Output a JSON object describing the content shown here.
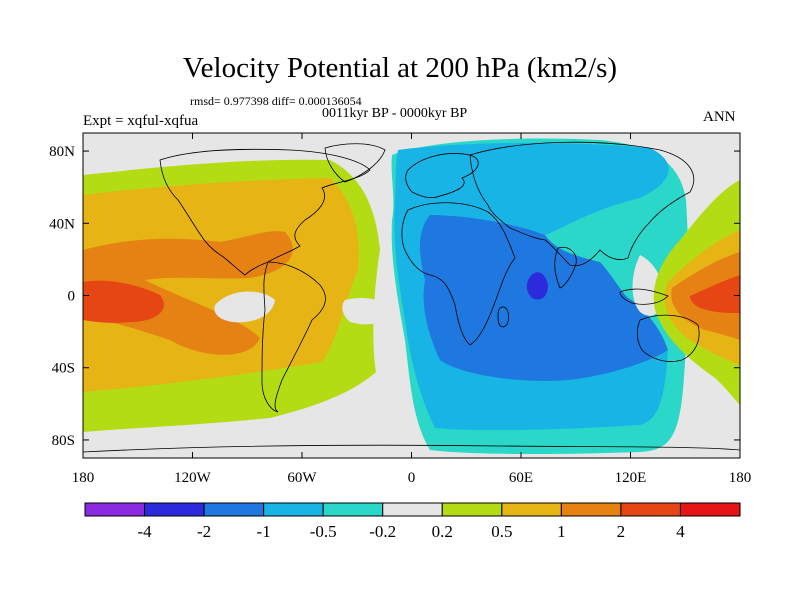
{
  "title": "Velocity Potential at 200 hPa (km2/s)",
  "stats": "rmsd= 0.977398 diff= 0.000136054",
  "period": "0011kyr BP - 0000kyr BP",
  "experiment": "Expt = xqful-xqfua",
  "season": "ANN",
  "map": {
    "projection": "equirectangular",
    "lon_range": [
      -180,
      180
    ],
    "lat_range": [
      -90,
      90
    ],
    "lat_ticks": [
      {
        "lat": 80,
        "label": "80N"
      },
      {
        "lat": 40,
        "label": "40N"
      },
      {
        "lat": 0,
        "label": "0"
      },
      {
        "lat": -40,
        "label": "40S"
      },
      {
        "lat": -80,
        "label": "80S"
      }
    ],
    "lon_ticks": [
      {
        "lon": -180,
        "label": "180"
      },
      {
        "lon": -120,
        "label": "120W"
      },
      {
        "lon": -60,
        "label": "60W"
      },
      {
        "lon": 0,
        "label": "0"
      },
      {
        "lon": 60,
        "label": "60E"
      },
      {
        "lon": 120,
        "label": "120E"
      },
      {
        "lon": 180,
        "label": "180"
      }
    ],
    "background_color": "#e6e6e6"
  },
  "colorbar": {
    "levels": [
      "-4",
      "-2",
      "-1",
      "-0.5",
      "-0.2",
      "0.2",
      "0.5",
      "1",
      "2",
      "4"
    ],
    "colors": [
      "#8a2be2",
      "#2b2bdc",
      "#1e78e0",
      "#19b4e6",
      "#2ad7c8",
      "#e6e6e6",
      "#b4dc14",
      "#e6b414",
      "#e68214",
      "#e64614",
      "#e61414"
    ]
  }
}
